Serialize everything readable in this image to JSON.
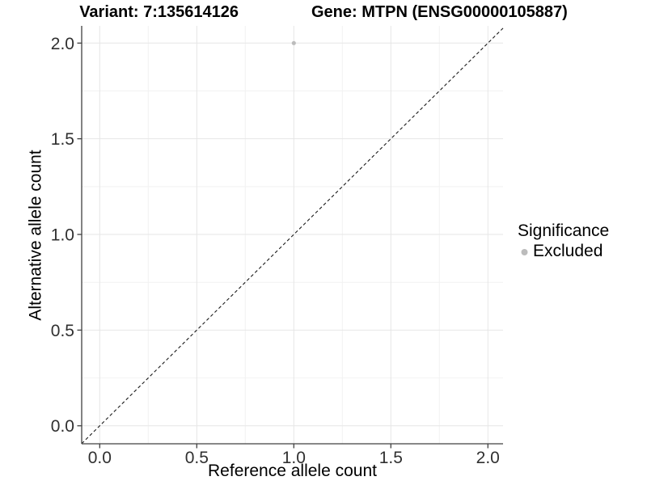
{
  "figure": {
    "title_left": "Variant: 7:135614126",
    "title_right": "Gene: MTPN (ENSG00000105887)"
  },
  "chart_data": {
    "type": "scatter",
    "title": "Variant: 7:135614126   Gene: MTPN (ENSG00000105887)",
    "xlabel": "Reference allele count",
    "ylabel": "Alternative allele count",
    "xlim": [
      -0.093,
      2.078
    ],
    "ylim": [
      -0.094,
      2.09
    ],
    "x_ticks": [
      0.0,
      0.5,
      1.0,
      1.5,
      2.0
    ],
    "y_ticks": [
      0.0,
      0.5,
      1.0,
      1.5,
      2.0
    ],
    "x_tick_labels": [
      "0.0",
      "0.5",
      "1.0",
      "1.5",
      "2.0"
    ],
    "y_tick_labels": [
      "0.0",
      "0.5",
      "1.0",
      "1.5",
      "2.0"
    ],
    "x_minor_ticks": [
      0.25,
      0.75,
      1.25,
      1.75
    ],
    "y_minor_ticks": [
      0.25,
      0.75,
      1.25,
      1.75
    ],
    "grid": true,
    "series": [
      {
        "name": "Excluded",
        "color": "#bcbcbc",
        "points": [
          {
            "x": 1.0,
            "y": 2.0
          }
        ]
      }
    ],
    "reference_line": {
      "type": "identity",
      "equation": "y = x",
      "style": "dashed",
      "color": "#1a1a1a"
    },
    "legend": {
      "title": "Significance",
      "position": "right",
      "entries": [
        {
          "label": "Excluded",
          "color": "#bcbcbc"
        }
      ]
    }
  },
  "colors": {
    "background": "#ffffff",
    "grid_major": "#e6e6e6",
    "grid_minor": "#f2f2f2",
    "axis_line": "#404040",
    "tick_text": "#303030",
    "point": "#bcbcbc"
  }
}
